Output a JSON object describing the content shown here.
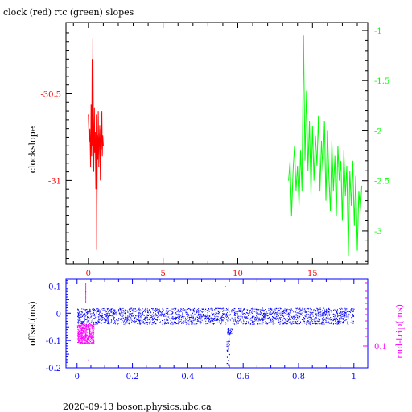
{
  "title": "clock (red) rtc (green) slopes",
  "footer": "2020-09-13  boson.physics.ubc.ca",
  "colors": {
    "clock": "#ff0000",
    "rtc": "#00ff00",
    "offset": "#0000ff",
    "rndtrip": "#ff00ff",
    "axes": "#000000"
  },
  "chart_data": [
    {
      "type": "line",
      "ylabel": "clockslope",
      "xlim": [
        -1.5,
        18.7
      ],
      "x_ticks": [
        "0",
        "5",
        "10",
        "15"
      ],
      "left_axis": {
        "ylim": [
          -31.48,
          -30.09
        ],
        "ticks": [
          "-30.5",
          "-31"
        ],
        "color": "#ff0000"
      },
      "right_axis": {
        "ylim": [
          -3.33,
          -0.92
        ],
        "ticks": [
          "-1",
          "-1.5",
          "-2",
          "-2.5",
          "-3"
        ],
        "color": "#00ff00"
      },
      "series": [
        {
          "axis": "left",
          "color": "#ff0000",
          "x_range": [
            0.0,
            1.0
          ],
          "points": [
            [
              0.0,
              -30.62
            ],
            [
              0.05,
              -30.78
            ],
            [
              0.1,
              -30.7
            ],
            [
              0.15,
              -30.92
            ],
            [
              0.18,
              -30.56
            ],
            [
              0.22,
              -30.86
            ],
            [
              0.25,
              -30.3
            ],
            [
              0.28,
              -30.8
            ],
            [
              0.3,
              -30.18
            ],
            [
              0.33,
              -30.66
            ],
            [
              0.36,
              -30.95
            ],
            [
              0.4,
              -30.58
            ],
            [
              0.43,
              -30.84
            ],
            [
              0.46,
              -30.72
            ],
            [
              0.5,
              -31.05
            ],
            [
              0.53,
              -30.62
            ],
            [
              0.56,
              -31.4
            ],
            [
              0.6,
              -30.74
            ],
            [
              0.63,
              -30.88
            ],
            [
              0.66,
              -30.6
            ],
            [
              0.7,
              -30.92
            ],
            [
              0.73,
              -30.76
            ],
            [
              0.76,
              -30.68
            ],
            [
              0.8,
              -31.0
            ],
            [
              0.83,
              -30.7
            ],
            [
              0.86,
              -30.82
            ],
            [
              0.9,
              -30.6
            ],
            [
              0.93,
              -30.86
            ],
            [
              0.96,
              -30.74
            ],
            [
              1.0,
              -30.8
            ]
          ]
        },
        {
          "axis": "right",
          "color": "#00ff00",
          "x_range": [
            13.4,
            18.3
          ],
          "points": [
            [
              13.4,
              -2.5
            ],
            [
              13.5,
              -2.3
            ],
            [
              13.6,
              -2.85
            ],
            [
              13.7,
              -2.4
            ],
            [
              13.8,
              -2.15
            ],
            [
              13.9,
              -2.6
            ],
            [
              14.0,
              -2.35
            ],
            [
              14.1,
              -2.75
            ],
            [
              14.2,
              -2.2
            ],
            [
              14.3,
              -2.6
            ],
            [
              14.4,
              -1.05
            ],
            [
              14.5,
              -2.3
            ],
            [
              14.6,
              -1.6
            ],
            [
              14.7,
              -2.4
            ],
            [
              14.8,
              -1.9
            ],
            [
              14.9,
              -2.65
            ],
            [
              15.0,
              -1.95
            ],
            [
              15.1,
              -2.5
            ],
            [
              15.2,
              -2.05
            ],
            [
              15.3,
              -2.35
            ],
            [
              15.4,
              -1.85
            ],
            [
              15.5,
              -2.6
            ],
            [
              15.6,
              -2.1
            ],
            [
              15.7,
              -2.4
            ],
            [
              15.8,
              -1.9
            ],
            [
              15.9,
              -2.7
            ],
            [
              16.0,
              -2.0
            ],
            [
              16.1,
              -2.45
            ],
            [
              16.2,
              -2.8
            ],
            [
              16.3,
              -2.1
            ],
            [
              16.4,
              -2.6
            ],
            [
              16.5,
              -2.25
            ],
            [
              16.6,
              -2.85
            ],
            [
              16.7,
              -2.15
            ],
            [
              16.8,
              -2.5
            ],
            [
              16.9,
              -2.3
            ],
            [
              17.0,
              -2.9
            ],
            [
              17.1,
              -2.2
            ],
            [
              17.2,
              -2.65
            ],
            [
              17.3,
              -2.35
            ],
            [
              17.4,
              -3.25
            ],
            [
              17.5,
              -2.4
            ],
            [
              17.6,
              -2.75
            ],
            [
              17.7,
              -2.3
            ],
            [
              17.8,
              -2.95
            ],
            [
              17.9,
              -2.45
            ],
            [
              18.0,
              -3.2
            ],
            [
              18.1,
              -2.6
            ],
            [
              18.2,
              -2.8
            ],
            [
              18.3,
              -2.55
            ]
          ]
        }
      ]
    },
    {
      "type": "scatter",
      "ylabel": "offset(ms)",
      "y2label": "rnd-trip(ms)",
      "xlim": [
        -0.04,
        1.05
      ],
      "ylim": [
        -0.2,
        0.125
      ],
      "x_ticks": [
        "0",
        "0.2",
        "0.4",
        "0.6",
        "0.8",
        "1"
      ],
      "y_ticks": [
        "0.1",
        "0",
        "-0.1",
        "-0.2"
      ],
      "y2_ticks": [
        "0.1"
      ],
      "offset_series": {
        "color": "#0000ff",
        "x_range": [
          0.0,
          1.0
        ],
        "band": [
          -0.04,
          0.02
        ],
        "dip": {
          "x": [
            0.54,
            0.56
          ],
          "y": -0.065
        },
        "outliers": [
          [
            0.535,
            0.1
          ],
          [
            0.54,
            -0.12
          ],
          [
            0.545,
            -0.19
          ],
          [
            0.55,
            -0.15
          ],
          [
            0.03,
            0.08
          ],
          [
            0.02,
            -0.03
          ]
        ]
      },
      "rndtrip_series": {
        "color": "#ff00ff",
        "x_range": [
          0.0,
          0.06
        ],
        "band": [
          -0.11,
          -0.04
        ],
        "outliers": [
          [
            0.03,
            0.11
          ],
          [
            0.04,
            -0.17
          ]
        ]
      }
    }
  ]
}
